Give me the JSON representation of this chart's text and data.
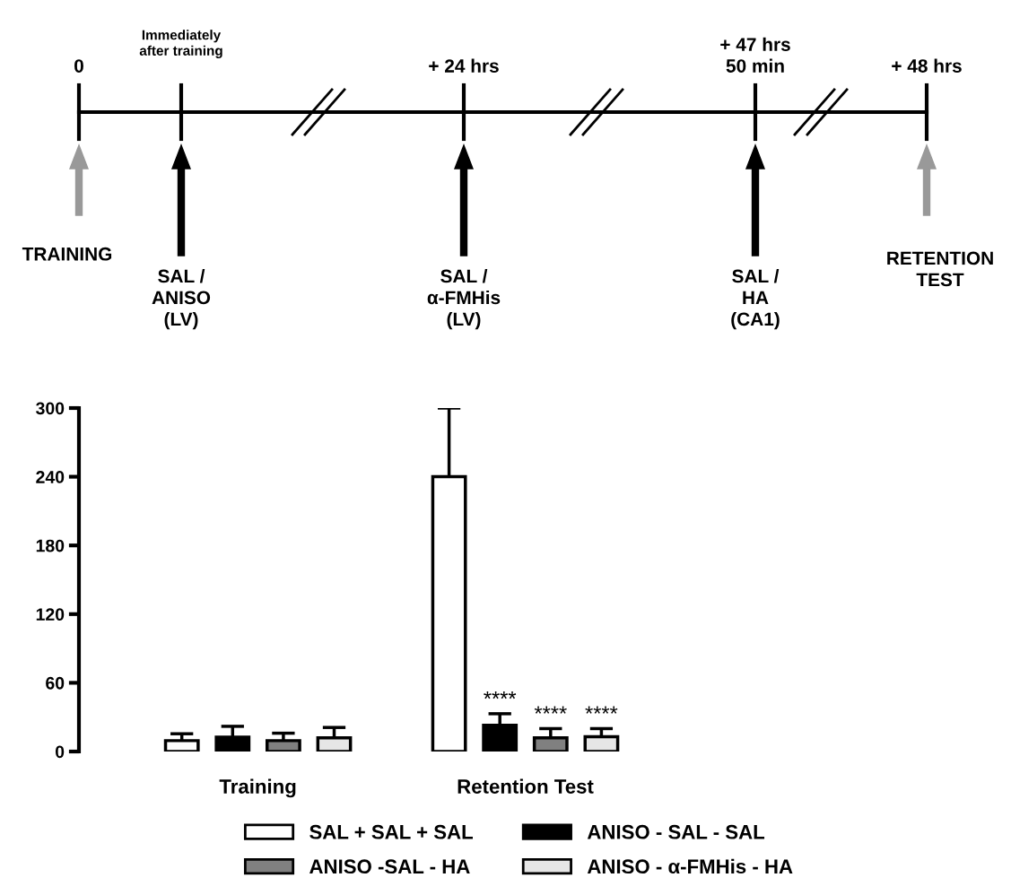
{
  "chart_data": [
    {
      "type": "other",
      "annotations": [
        "0",
        "Immediately\nafter training",
        "+ 24 hrs",
        "+ 47 hrs\n50 min",
        "+ 48 hrs",
        "TRAINING",
        "SAL /\nANISO\n(LV)",
        "SAL /\nα-FMHis\n(LV)",
        "SAL /\nHA\n(CA1)",
        "RETENTION\nTEST"
      ]
    },
    {
      "type": "bar",
      "categories": [
        "Training",
        "Retention Test"
      ],
      "series": [
        {
          "name": "SAL + SAL + SAL",
          "color": "#ffffff",
          "values": [
            9.5,
            240
          ],
          "errors": [
            [
              9.5,
              15.5
            ],
            [
              240,
              300
            ]
          ]
        },
        {
          "name": "ANISO - SAL - SAL",
          "color": "#000000",
          "values": [
            12.5,
            23
          ],
          "errors": [
            [
              12.5,
              22
            ],
            [
              23,
              33
            ]
          ]
        },
        {
          "name": "ANISO -SAL - HA",
          "color": "#808080",
          "values": [
            9.5,
            12
          ],
          "errors": [
            [
              9.5,
              16
            ],
            [
              12,
              20
            ]
          ]
        },
        {
          "name": "ANISO - α-FMHis - HA",
          "color": "#e6e6e6",
          "values": [
            12,
            13
          ],
          "errors": [
            [
              12,
              21
            ],
            [
              13,
              20
            ]
          ]
        }
      ],
      "annotations": [
        "****",
        "****",
        "****"
      ],
      "ylim": [
        0,
        300
      ],
      "yticks": [
        0,
        60,
        120,
        180,
        240,
        300
      ],
      "grid": false,
      "legend": "bottom"
    }
  ]
}
